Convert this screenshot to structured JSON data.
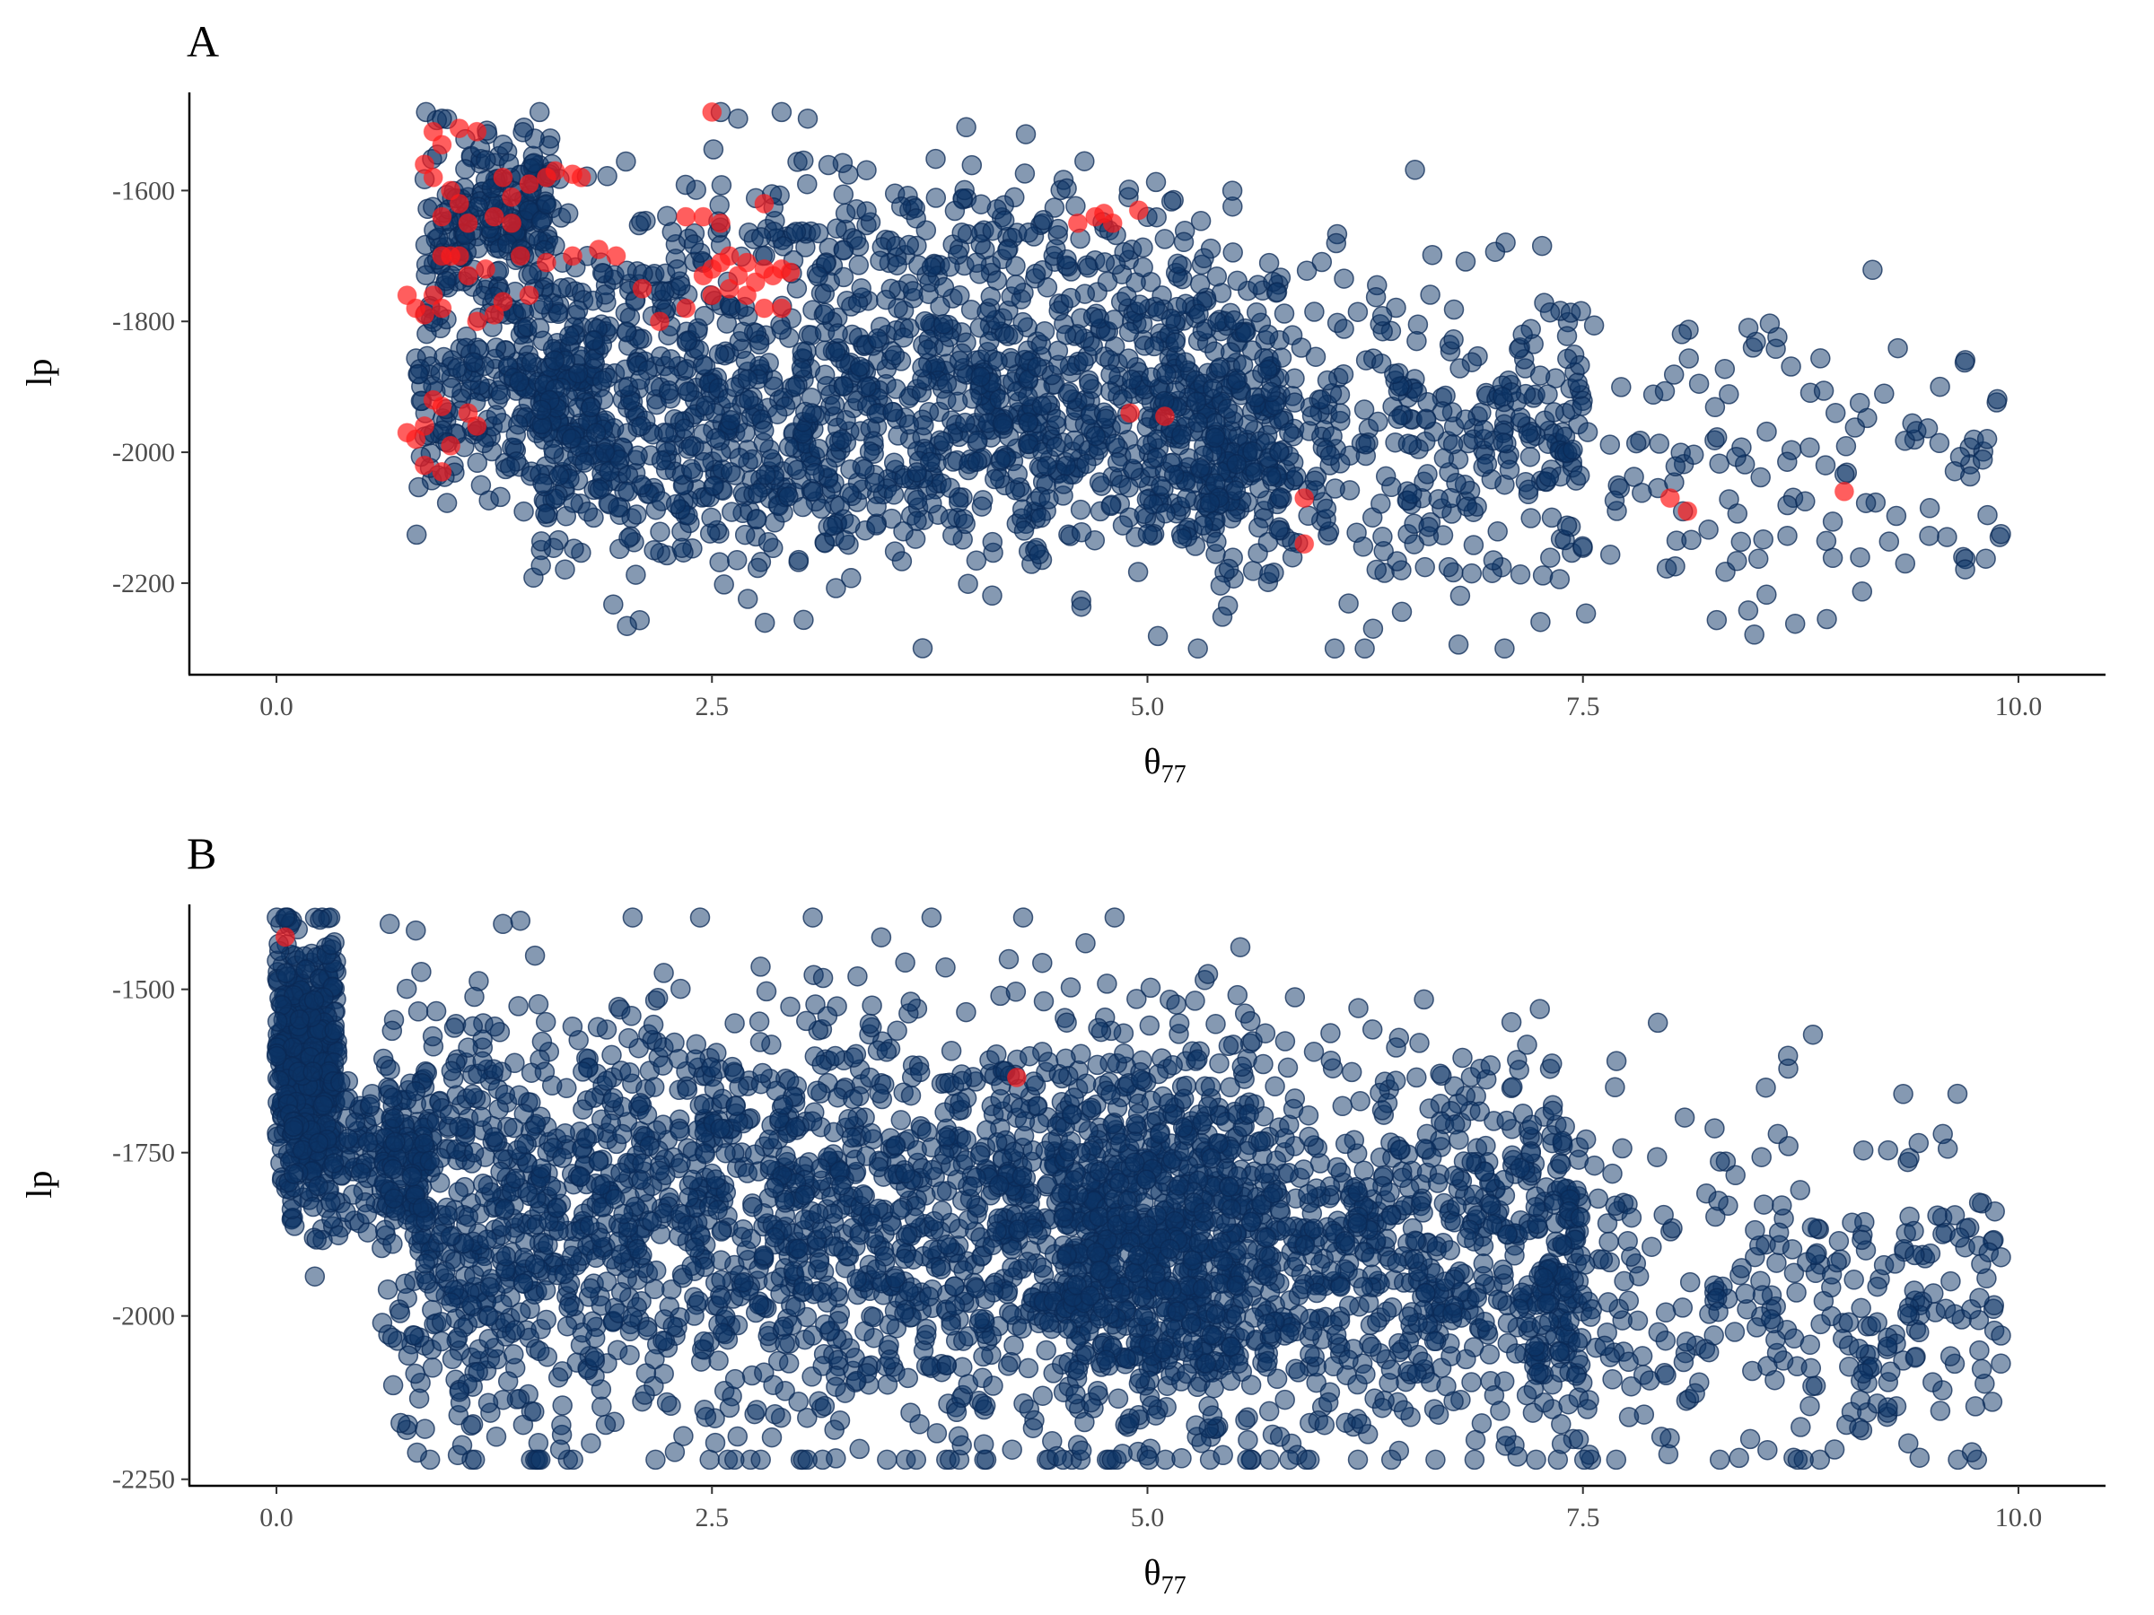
{
  "chart_data": [
    {
      "type": "scatter",
      "panel_label": "A",
      "xlabel": "θ",
      "xlabel_sub": "77",
      "ylabel": "lp",
      "xlim": [
        -0.5,
        10.5
      ],
      "ylim": [
        -2340,
        -1450
      ],
      "x_ticks": [
        0.0,
        2.5,
        5.0,
        7.5,
        10.0
      ],
      "x_tick_labels": [
        "0.0",
        "2.5",
        "5.0",
        "7.5",
        "10.0"
      ],
      "y_ticks": [
        -1600,
        -1800,
        -2000,
        -2200
      ],
      "y_tick_labels": [
        "-1600",
        "-1800",
        "-2000",
        "-2200"
      ],
      "grid": false,
      "point_colors": {
        "background": "#0b3466",
        "highlight": "#ff1a1a"
      },
      "series": [
        {
          "role": "background",
          "generator": {
            "seed": 7,
            "count": 2600,
            "clusters": [
              {
                "weight": 0.08,
                "x_range": [
                  0.85,
                  1.6
                ],
                "y_center": -1640,
                "y_sd": 70
              },
              {
                "weight": 0.1,
                "x_range": [
                  0.8,
                  1.9
                ],
                "y_center": -1900,
                "y_sd": 90
              },
              {
                "weight": 0.5,
                "x_range": [
                  1.5,
                  5.8
                ],
                "y_center": -1950,
                "y_sd": 110
              },
              {
                "weight": 0.1,
                "x_range": [
                  2.0,
                  5.5
                ],
                "y_center": -1700,
                "y_sd": 70
              },
              {
                "weight": 0.17,
                "x_range": [
                  5.0,
                  7.5
                ],
                "y_center": -1990,
                "y_sd": 120
              },
              {
                "weight": 0.05,
                "x_range": [
                  7.3,
                  9.9
                ],
                "y_center": -2030,
                "y_sd": 120
              }
            ],
            "y_clip": [
              -2300,
              -1480
            ]
          },
          "points": [
            [
              0.95,
              -1490
            ],
            [
              2.55,
              -1480
            ],
            [
              2.65,
              -1490
            ],
            [
              2.9,
              -1480
            ],
            [
              3.05,
              -1490
            ],
            [
              1.3,
              -1530
            ],
            [
              9.55,
              -1900
            ],
            [
              9.9,
              -2125
            ],
            [
              9.35,
              -2170
            ],
            [
              8.9,
              -2255
            ],
            [
              7.05,
              -2300
            ],
            [
              8.45,
              -1810
            ],
            [
              8.95,
              -1940
            ]
          ]
        },
        {
          "role": "highlight",
          "points": [
            [
              0.9,
              -1510
            ],
            [
              0.95,
              -1530
            ],
            [
              1.05,
              -1505
            ],
            [
              1.15,
              -1510
            ],
            [
              0.85,
              -1560
            ],
            [
              0.9,
              -1580
            ],
            [
              1.0,
              -1600
            ],
            [
              1.05,
              -1620
            ],
            [
              0.95,
              -1640
            ],
            [
              1.1,
              -1650
            ],
            [
              1.3,
              -1580
            ],
            [
              1.35,
              -1610
            ],
            [
              1.45,
              -1590
            ],
            [
              1.55,
              -1580
            ],
            [
              1.6,
              -1570
            ],
            [
              1.7,
              -1575
            ],
            [
              1.75,
              -1580
            ],
            [
              1.25,
              -1640
            ],
            [
              1.35,
              -1650
            ],
            [
              1.0,
              -1700
            ],
            [
              1.1,
              -1730
            ],
            [
              1.2,
              -1720
            ],
            [
              1.4,
              -1700
            ],
            [
              1.55,
              -1710
            ],
            [
              1.7,
              -1700
            ],
            [
              1.85,
              -1690
            ],
            [
              1.95,
              -1700
            ],
            [
              1.3,
              -1770
            ],
            [
              1.45,
              -1760
            ],
            [
              1.25,
              -1790
            ],
            [
              1.15,
              -1800
            ],
            [
              0.75,
              -1760
            ],
            [
              0.8,
              -1780
            ],
            [
              0.85,
              -1790
            ],
            [
              0.9,
              -1760
            ],
            [
              0.95,
              -1780
            ],
            [
              2.1,
              -1750
            ],
            [
              2.2,
              -1800
            ],
            [
              2.35,
              -1780
            ],
            [
              2.45,
              -1730
            ],
            [
              2.5,
              -1720
            ],
            [
              2.55,
              -1710
            ],
            [
              2.6,
              -1700
            ],
            [
              2.65,
              -1730
            ],
            [
              2.7,
              -1710
            ],
            [
              2.75,
              -1740
            ],
            [
              2.8,
              -1720
            ],
            [
              2.85,
              -1730
            ],
            [
              2.9,
              -1720
            ],
            [
              2.95,
              -1725
            ],
            [
              2.5,
              -1760
            ],
            [
              2.6,
              -1750
            ],
            [
              2.7,
              -1760
            ],
            [
              2.8,
              -1780
            ],
            [
              2.9,
              -1780
            ],
            [
              2.55,
              -1650
            ],
            [
              2.45,
              -1640
            ],
            [
              2.35,
              -1640
            ],
            [
              2.5,
              -1480
            ],
            [
              2.8,
              -1620
            ],
            [
              4.6,
              -1650
            ],
            [
              4.7,
              -1640
            ],
            [
              4.8,
              -1650
            ],
            [
              4.75,
              -1635
            ],
            [
              4.95,
              -1630
            ],
            [
              4.9,
              -1940
            ],
            [
              5.1,
              -1945
            ],
            [
              5.9,
              -2070
            ],
            [
              5.9,
              -2140
            ],
            [
              8.0,
              -2070
            ],
            [
              8.1,
              -2090
            ],
            [
              9.0,
              -2060
            ],
            [
              0.75,
              -1970
            ],
            [
              0.8,
              -1980
            ],
            [
              0.85,
              -1960
            ],
            [
              0.9,
              -1920
            ],
            [
              0.95,
              -1930
            ],
            [
              1.0,
              -1990
            ],
            [
              0.85,
              -2020
            ],
            [
              0.95,
              -2030
            ],
            [
              1.1,
              -1940
            ],
            [
              1.15,
              -1960
            ],
            [
              1.05,
              -1700
            ],
            [
              0.95,
              -1700
            ]
          ]
        }
      ]
    },
    {
      "type": "scatter",
      "panel_label": "B",
      "xlabel": "θ",
      "xlabel_sub": "77",
      "ylabel": "lp",
      "xlim": [
        -0.5,
        10.5
      ],
      "ylim": [
        -2260,
        -1370
      ],
      "x_ticks": [
        0.0,
        2.5,
        5.0,
        7.5,
        10.0
      ],
      "x_tick_labels": [
        "0.0",
        "2.5",
        "5.0",
        "7.5",
        "10.0"
      ],
      "y_ticks": [
        -1500,
        -1750,
        -2000,
        -2250
      ],
      "y_tick_labels": [
        "-1500",
        "-1750",
        "-2000",
        "-2250"
      ],
      "grid": false,
      "point_colors": {
        "background": "#0b3466",
        "highlight": "#ff1a1a"
      },
      "series": [
        {
          "role": "background",
          "generator": {
            "seed": 11,
            "count": 4200,
            "clusters": [
              {
                "weight": 0.1,
                "x_range": [
                  0.0,
                  0.35
                ],
                "y_center": -1600,
                "y_sd": 90
              },
              {
                "weight": 0.05,
                "x_range": [
                  0.05,
                  0.9
                ],
                "y_center": -1760,
                "y_sd": 60
              },
              {
                "weight": 0.5,
                "x_range": [
                  0.6,
                  5.6
                ],
                "y_center": -1850,
                "y_sd": 170
              },
              {
                "weight": 0.27,
                "x_range": [
                  4.5,
                  7.5
                ],
                "y_center": -1900,
                "y_sd": 150
              },
              {
                "weight": 0.08,
                "x_range": [
                  7.2,
                  9.9
                ],
                "y_center": -1980,
                "y_sd": 130
              }
            ],
            "y_clip": [
              -2220,
              -1390
            ]
          },
          "points": [
            [
              0.05,
              -1390
            ],
            [
              0.65,
              -1400
            ],
            [
              0.8,
              -1410
            ],
            [
              1.3,
              -1400
            ],
            [
              1.4,
              -1395
            ],
            [
              9.9,
              -1910
            ],
            [
              9.9,
              -2030
            ],
            [
              9.65,
              -1660
            ],
            [
              9.4,
              -1870
            ],
            [
              9.25,
              -2140
            ],
            [
              8.75,
              -2170
            ],
            [
              7.95,
              -2185
            ],
            [
              5.7,
              -2220
            ],
            [
              6.4,
              -2220
            ]
          ]
        },
        {
          "role": "highlight",
          "points": [
            [
              0.05,
              -1420
            ],
            [
              4.25,
              -1635
            ]
          ]
        }
      ]
    }
  ]
}
